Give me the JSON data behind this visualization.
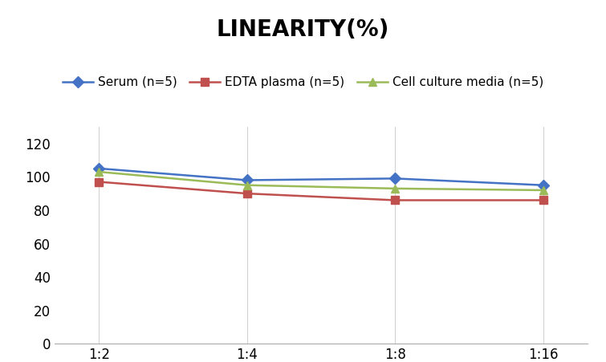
{
  "title": "LINEARITY(%)",
  "x_labels": [
    "1:2",
    "1:4",
    "1:8",
    "1:16"
  ],
  "x_positions": [
    0,
    1,
    2,
    3
  ],
  "series": [
    {
      "label": "Serum (n=5)",
      "values": [
        105,
        98,
        99,
        95
      ],
      "color": "#4472C4",
      "marker": "D",
      "marker_color": "#4472C4"
    },
    {
      "label": "EDTA plasma (n=5)",
      "values": [
        97,
        90,
        86,
        86
      ],
      "color": "#C0504D",
      "marker": "s",
      "marker_color": "#C0504D"
    },
    {
      "label": "Cell culture media (n=5)",
      "values": [
        103,
        95,
        93,
        92
      ],
      "color": "#9BBB59",
      "marker": "^",
      "marker_color": "#9BBB59"
    }
  ],
  "ylim": [
    0,
    130
  ],
  "yticks": [
    0,
    20,
    40,
    60,
    80,
    100,
    120
  ],
  "title_fontsize": 20,
  "legend_fontsize": 11,
  "tick_fontsize": 12,
  "background_color": "#FFFFFF",
  "grid_color": "#D3D3D3"
}
